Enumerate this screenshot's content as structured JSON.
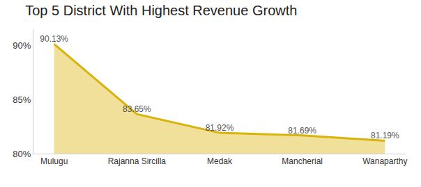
{
  "chart_data": {
    "type": "area",
    "title": "Top 5 District With Highest Revenue Growth",
    "categories": [
      "Mulugu",
      "Rajanna Sircilla",
      "Medak",
      "Mancherial",
      "Wanaparthy"
    ],
    "values": [
      90.13,
      83.65,
      81.92,
      81.69,
      81.19
    ],
    "value_labels": [
      "90.13%",
      "83.65%",
      "81.92%",
      "81.69%",
      "81.19%"
    ],
    "color": "#d8b30a",
    "ylim": [
      80,
      91.5
    ],
    "yticks": [
      {
        "value": 80,
        "label": "80%"
      },
      {
        "value": 85,
        "label": "85%"
      },
      {
        "value": 90,
        "label": "90%"
      }
    ],
    "grid": false,
    "data_labels": true
  }
}
